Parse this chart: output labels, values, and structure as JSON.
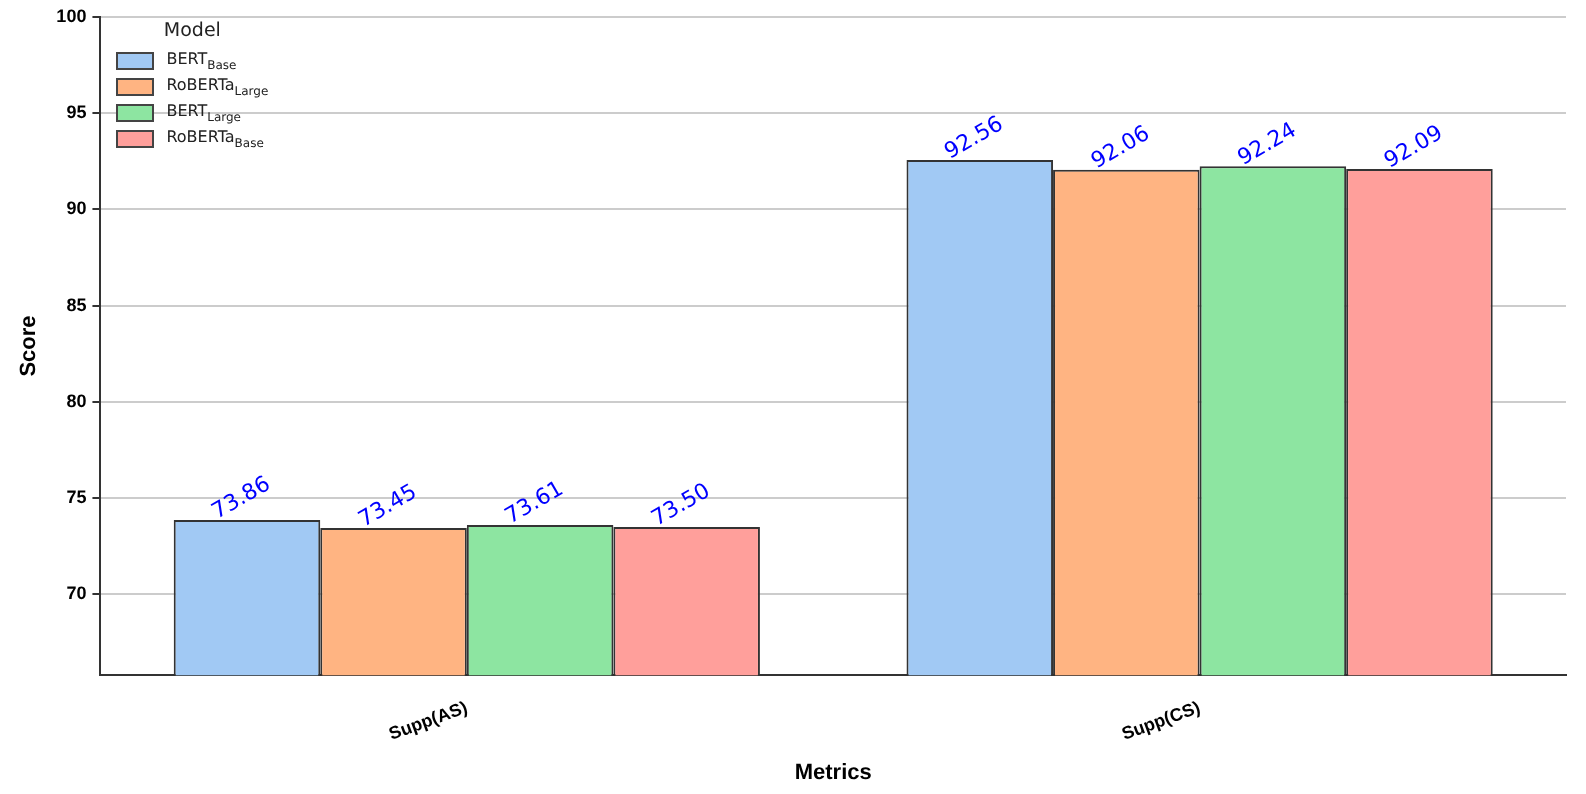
{
  "chart_data": {
    "type": "bar",
    "xlabel": "Metrics",
    "ylabel": "Score",
    "legend_title": "Model",
    "categories": [
      "Supp(AS)",
      "Supp(CS)"
    ],
    "series": [
      {
        "name": "BERT$_{Base}$",
        "color": "#a1c9f4",
        "values": [
          73.86,
          92.56
        ],
        "value_labels": [
          "73.86",
          "92.56"
        ]
      },
      {
        "name": "RoBERTa$_{Large}$",
        "color": "#ffb482",
        "values": [
          73.45,
          92.06
        ],
        "value_labels": [
          "73.45",
          "92.06"
        ]
      },
      {
        "name": "BERT$_{Large}$",
        "color": "#8de5a1",
        "values": [
          73.61,
          92.24
        ],
        "value_labels": [
          "73.61",
          "92.24"
        ]
      },
      {
        "name": "RoBERTa$_{Base}$",
        "color": "#ff9f9b",
        "values": [
          73.5,
          92.09
        ],
        "value_labels": [
          "73.50",
          "92.09"
        ]
      }
    ],
    "ylim": [
      65.8,
      100
    ],
    "yticks": [
      70,
      75,
      80,
      85,
      90,
      95,
      100
    ],
    "grid": "y",
    "legend": "top left"
  }
}
